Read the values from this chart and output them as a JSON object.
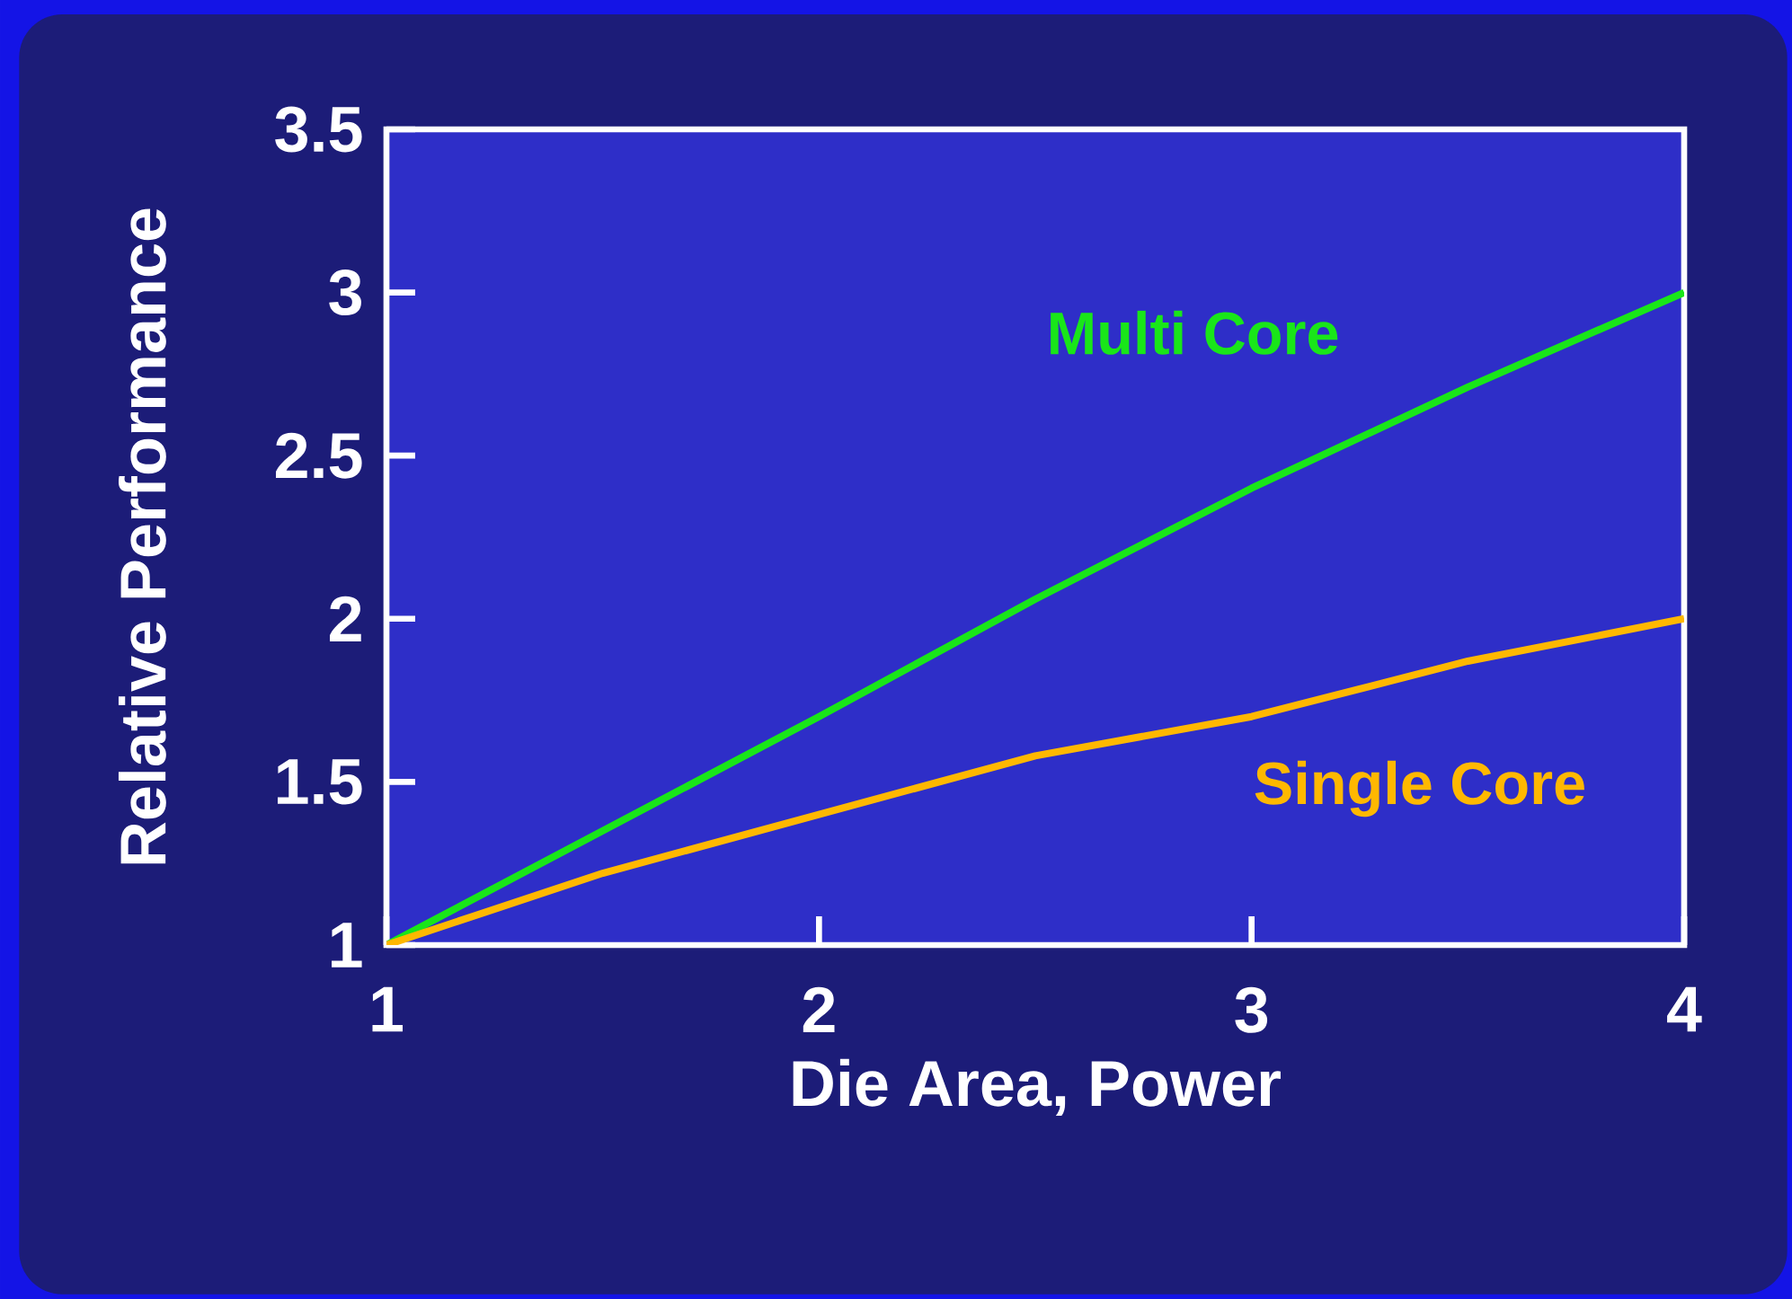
{
  "chart_data": {
    "type": "line",
    "xlabel": "Die Area, Power",
    "ylabel": "Relative Performance",
    "x": [
      1,
      1.5,
      2,
      2.5,
      3,
      3.5,
      4
    ],
    "series": [
      {
        "name": "Multi Core",
        "color": "#19e619",
        "values": [
          1,
          1.35,
          1.7,
          2.06,
          2.4,
          2.71,
          3.0
        ]
      },
      {
        "name": "Single Core",
        "color": "#ffb800",
        "values": [
          1,
          1.22,
          1.4,
          1.58,
          1.7,
          1.87,
          2.0
        ]
      }
    ],
    "xlim": [
      1,
      4
    ],
    "ylim": [
      1,
      3.5
    ],
    "xticks": [
      1,
      2,
      3,
      4
    ],
    "yticks": [
      1,
      1.5,
      2,
      2.5,
      3,
      3.5
    ],
    "grid": false,
    "legend": false,
    "marker": "none",
    "line_style": "solid"
  }
}
